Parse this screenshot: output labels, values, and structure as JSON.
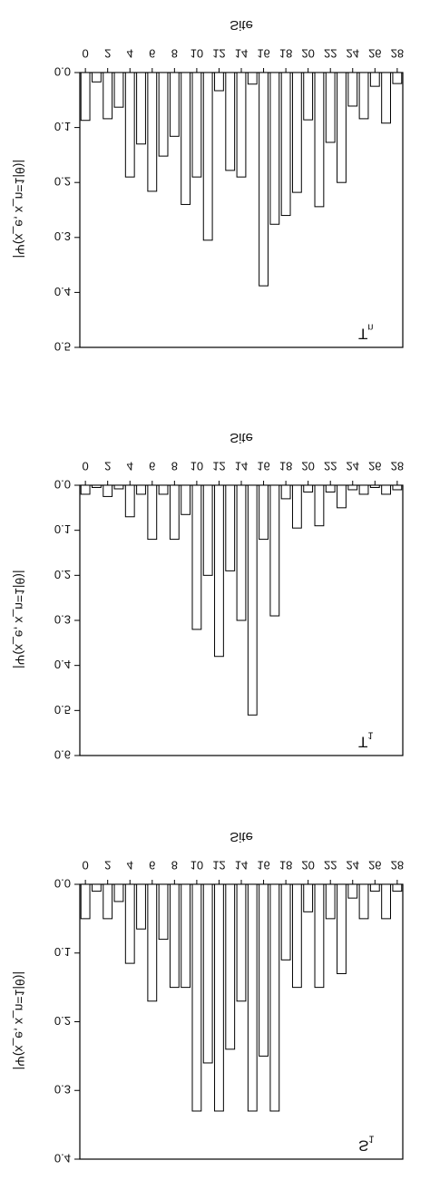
{
  "chart_data": [
    {
      "type": "bar",
      "panel_label": {
        "symbol": "T",
        "subscript": "n"
      },
      "x_label": "Site",
      "y_label": "|Ψ(x_e, x_n=1|θ)|",
      "x": [
        0,
        1,
        2,
        3,
        4,
        5,
        6,
        7,
        8,
        9,
        10,
        11,
        12,
        13,
        14,
        15,
        16,
        17,
        18,
        19,
        20,
        21,
        22,
        23,
        24,
        25,
        26,
        27,
        28
      ],
      "values": [
        0.087,
        0.017,
        0.084,
        0.063,
        0.19,
        0.13,
        0.216,
        0.152,
        0.116,
        0.24,
        0.19,
        0.305,
        0.033,
        0.178,
        0.19,
        0.021,
        0.388,
        0.276,
        0.26,
        0.218,
        0.086,
        0.244,
        0.127,
        0.2,
        0.061,
        0.084,
        0.025,
        0.092,
        0.02
      ],
      "xlim": [
        -0.5,
        28.5
      ],
      "xticks": [
        0,
        2,
        4,
        6,
        8,
        10,
        12,
        14,
        16,
        18,
        20,
        22,
        24,
        26,
        28
      ],
      "ylim": [
        0,
        0.5
      ],
      "yticks": [
        {
          "value": 0,
          "label": "0.0"
        },
        {
          "value": 0.1,
          "label": "0.1"
        },
        {
          "value": 0.2,
          "label": "0.2"
        },
        {
          "value": 0.3,
          "label": "0.3"
        },
        {
          "value": 0.4,
          "label": "0.4"
        },
        {
          "value": 0.5,
          "label": "0.5"
        }
      ],
      "color": "#ffffff",
      "edgecolor": "#000000"
    },
    {
      "type": "bar",
      "panel_label": {
        "symbol": "T",
        "subscript": "1"
      },
      "x_label": "Site",
      "y_label": "|Ψ(x_e, x_n=1|θ)|",
      "x": [
        0,
        1,
        2,
        3,
        4,
        5,
        6,
        7,
        8,
        9,
        10,
        11,
        12,
        13,
        14,
        15,
        16,
        17,
        18,
        19,
        20,
        21,
        22,
        23,
        24,
        25,
        26,
        27,
        28
      ],
      "values": [
        0.02,
        0.005,
        0.025,
        0.008,
        0.07,
        0.02,
        0.12,
        0.02,
        0.12,
        0.065,
        0.32,
        0.2,
        0.38,
        0.19,
        0.3,
        0.51,
        0.12,
        0.29,
        0.03,
        0.095,
        0.015,
        0.09,
        0.015,
        0.05,
        0.01,
        0.02,
        0.005,
        0.02,
        0.01
      ],
      "xlim": [
        -0.5,
        28.5
      ],
      "xticks": [
        0,
        2,
        4,
        6,
        8,
        10,
        12,
        14,
        16,
        18,
        20,
        22,
        24,
        26,
        28
      ],
      "ylim": [
        0,
        0.6
      ],
      "yticks": [
        {
          "value": 0,
          "label": "0.0"
        },
        {
          "value": 0.1,
          "label": "0.1"
        },
        {
          "value": 0.2,
          "label": "0.2"
        },
        {
          "value": 0.3,
          "label": "0.3"
        },
        {
          "value": 0.4,
          "label": "0.4"
        },
        {
          "value": 0.5,
          "label": "0.5"
        },
        {
          "value": 0.6,
          "label": "0.6"
        }
      ],
      "color": "#ffffff",
      "edgecolor": "#000000"
    },
    {
      "type": "bar",
      "panel_label": {
        "symbol": "S",
        "subscript": "1"
      },
      "x_label": "Site",
      "y_label": "|Ψ(x_e, x_n=1|θ)|",
      "x": [
        0,
        1,
        2,
        3,
        4,
        5,
        6,
        7,
        8,
        9,
        10,
        11,
        12,
        13,
        14,
        15,
        16,
        17,
        18,
        19,
        20,
        21,
        22,
        23,
        24,
        25,
        26,
        27,
        28
      ],
      "values": [
        0.05,
        0.01,
        0.05,
        0.025,
        0.115,
        0.065,
        0.17,
        0.08,
        0.15,
        0.15,
        0.33,
        0.26,
        0.33,
        0.24,
        0.17,
        0.33,
        0.25,
        0.33,
        0.11,
        0.15,
        0.04,
        0.15,
        0.05,
        0.13,
        0.02,
        0.05,
        0.01,
        0.05,
        0.01
      ],
      "xlim": [
        -0.5,
        28.5
      ],
      "xticks": [
        0,
        2,
        4,
        6,
        8,
        10,
        12,
        14,
        16,
        18,
        20,
        22,
        24,
        26,
        28
      ],
      "ylim": [
        0,
        0.4
      ],
      "yticks": [
        {
          "value": 0,
          "label": "0.0"
        },
        {
          "value": 0.1,
          "label": "0.1"
        },
        {
          "value": 0.2,
          "label": "0.2"
        },
        {
          "value": 0.3,
          "label": "0.3"
        },
        {
          "value": 0.4,
          "label": "0.4"
        }
      ],
      "color": "#ffffff",
      "edgecolor": "#000000"
    }
  ]
}
